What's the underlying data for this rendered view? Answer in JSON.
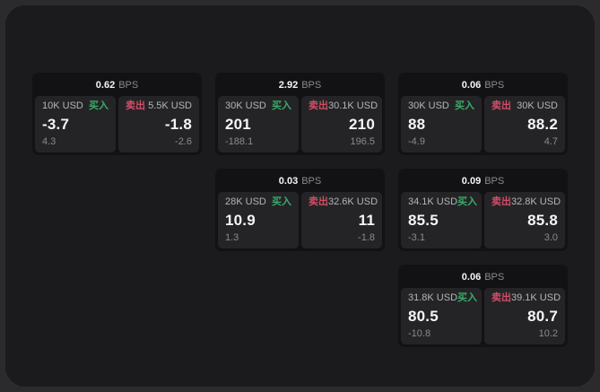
{
  "colors": {
    "page-bg": "#2b2b2d",
    "panel-bg": "#1b1b1d",
    "card-bg": "#121214",
    "cell-bg": "#242427",
    "buy-green": "#3cab69",
    "sell-red": "#cf4f66",
    "text-bright": "#f5f5f7",
    "text-dim": "#8a8a8f",
    "text-label": "#b4b4ba"
  },
  "labels": {
    "bps": "BPS",
    "buy": "买入",
    "sell": "卖出"
  },
  "cards": [
    {
      "bps": "0.62",
      "buy": {
        "size": "10K USD",
        "price": "-3.7",
        "delta": "4.3"
      },
      "sell": {
        "size": "5.5K USD",
        "price": "-1.8",
        "delta": "-2.6"
      }
    },
    {
      "bps": "2.92",
      "buy": {
        "size": "30K USD",
        "price": "201",
        "delta": "-188.1"
      },
      "sell": {
        "size": "30.1K USD",
        "price": "210",
        "delta": "196.5"
      }
    },
    {
      "bps": "0.06",
      "buy": {
        "size": "30K USD",
        "price": "88",
        "delta": "-4.9"
      },
      "sell": {
        "size": "30K USD",
        "price": "88.2",
        "delta": "4.7"
      }
    },
    {
      "bps": "0.03",
      "buy": {
        "size": "28K USD",
        "price": "10.9",
        "delta": "1.3"
      },
      "sell": {
        "size": "32.6K USD",
        "price": "11",
        "delta": "-1.8"
      }
    },
    {
      "bps": "0.09",
      "buy": {
        "size": "34.1K USD",
        "price": "85.5",
        "delta": "-3.1"
      },
      "sell": {
        "size": "32.8K USD",
        "price": "85.8",
        "delta": "3.0"
      }
    },
    {
      "bps": "0.06",
      "buy": {
        "size": "31.8K USD",
        "price": "80.5",
        "delta": "-10.8"
      },
      "sell": {
        "size": "39.1K USD",
        "price": "80.7",
        "delta": "10.2"
      }
    }
  ]
}
